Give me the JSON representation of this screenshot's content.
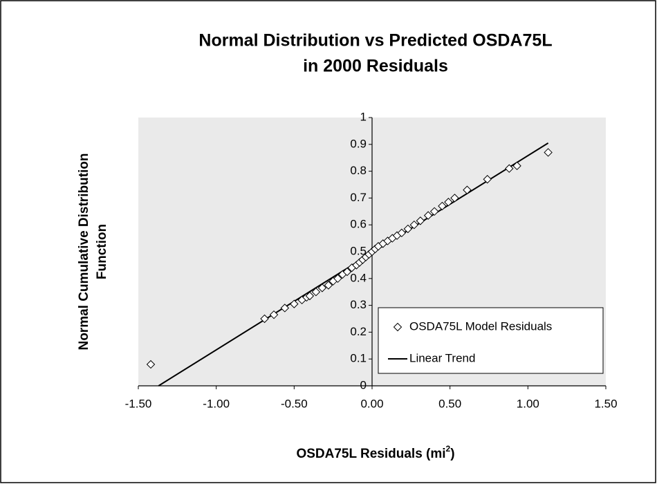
{
  "chart_data": {
    "type": "scatter",
    "title": [
      "Normal Distribution vs Predicted OSDA75L",
      "in 2000 Residuals"
    ],
    "x_label": {
      "text": "OSDA75L Residuals (mi",
      "sup": "2",
      "tail": ")"
    },
    "y_label": [
      "Normal Cumulative Distribution",
      "Function"
    ],
    "xlim": [
      -1.5,
      1.5
    ],
    "xticks": [
      {
        "value": -1.5,
        "label": "-1.50"
      },
      {
        "value": -1,
        "label": "-1.00"
      },
      {
        "value": -0.5,
        "label": "-0.50"
      },
      {
        "value": 0,
        "label": "0.00"
      },
      {
        "value": 0.5,
        "label": "0.50"
      },
      {
        "value": 1,
        "label": "1.00"
      },
      {
        "value": 1.5,
        "label": "1.50"
      }
    ],
    "ylim": [
      0,
      1
    ],
    "yticks": [
      0,
      0.1,
      0.2,
      0.3,
      0.4,
      0.5,
      0.6,
      0.7,
      0.8,
      0.9,
      1
    ],
    "legend": "lower right",
    "series": [
      {
        "name": "OSDA75L Model Residuals",
        "type": "scatter",
        "color": "#000000",
        "x": [
          -1.42,
          -0.69,
          -0.63,
          -0.56,
          -0.5,
          -0.45,
          -0.42,
          -0.4,
          -0.36,
          -0.32,
          -0.28,
          -0.25,
          -0.22,
          -0.19,
          -0.16,
          -0.13,
          -0.1,
          -0.08,
          -0.06,
          -0.04,
          -0.02,
          0,
          0.02,
          0.04,
          0.07,
          0.1,
          0.13,
          0.16,
          0.19,
          0.23,
          0.27,
          0.31,
          0.36,
          0.4,
          0.45,
          0.49,
          0.53,
          0.61,
          0.74,
          0.88,
          0.93,
          1.13
        ],
        "values": [
          0.08,
          0.25,
          0.265,
          0.29,
          0.305,
          0.32,
          0.33,
          0.335,
          0.35,
          0.365,
          0.375,
          0.39,
          0.4,
          0.415,
          0.425,
          0.44,
          0.45,
          0.46,
          0.47,
          0.48,
          0.49,
          0.5,
          0.51,
          0.52,
          0.53,
          0.54,
          0.55,
          0.56,
          0.57,
          0.585,
          0.6,
          0.615,
          0.635,
          0.65,
          0.67,
          0.685,
          0.7,
          0.73,
          0.77,
          0.81,
          0.82,
          0.87
        ]
      },
      {
        "name": "Linear Trend",
        "type": "line",
        "color": "#000000",
        "x": [
          -1.37,
          1.13
        ],
        "values": [
          0,
          0.905
        ]
      }
    ]
  }
}
